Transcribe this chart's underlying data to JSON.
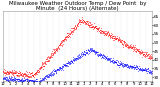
{
  "title": "Milwaukee Weather Outdoor Temp / Dew Point  by Minute  (24 Hours) (Alternate)",
  "bg_color": "#ffffff",
  "plot_bg_color": "#ffffff",
  "grid_color": "#cccccc",
  "text_color": "#000000",
  "temp_color": "#ff0000",
  "dew_color": "#0000ff",
  "ylim": [
    28,
    68
  ],
  "yticks": [
    30,
    35,
    40,
    45,
    50,
    55,
    60,
    65
  ],
  "xlim": [
    0,
    1439
  ],
  "xtick_positions": [
    0,
    60,
    120,
    180,
    240,
    300,
    360,
    420,
    480,
    540,
    600,
    660,
    720,
    780,
    840,
    900,
    960,
    1020,
    1080,
    1140,
    1200,
    1260,
    1320,
    1380,
    1439
  ],
  "xtick_labels": [
    "12",
    "1",
    "2",
    "3",
    "4",
    "5",
    "6",
    "7",
    "8",
    "9",
    "10",
    "11",
    "12",
    "1",
    "2",
    "3",
    "4",
    "5",
    "6",
    "7",
    "8",
    "9",
    "10",
    "11",
    "12"
  ],
  "title_fontsize": 4.0,
  "tick_fontsize": 3.0,
  "temp_peak_minute": 750,
  "temp_peak_val": 63,
  "temp_start": 33,
  "dew_start": 29,
  "dew_peak_minute": 840,
  "dew_peak_val": 46
}
